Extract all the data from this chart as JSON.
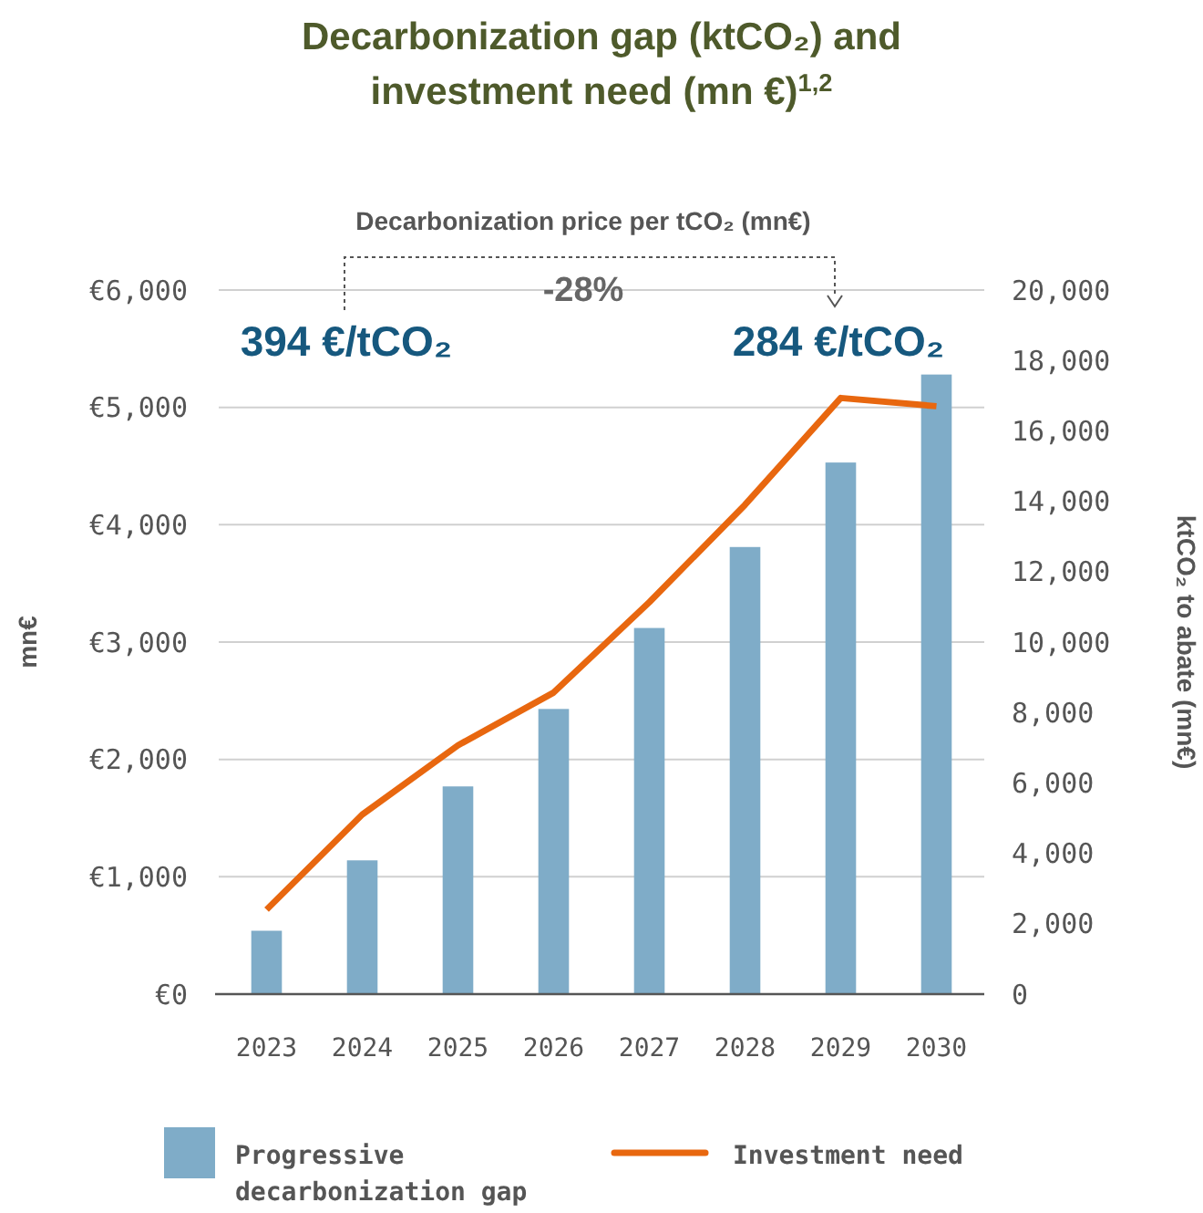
{
  "chart_data": {
    "type": "bar",
    "title": "Decarbonization gap (ktCO₂) and investment need (mn €)$^{1,2}$",
    "ylabel": "mn€",
    "y2label": "ktCO₂ to abate (mn€)",
    "categories": [
      "2023",
      "2024",
      "2025",
      "2026",
      "2027",
      "2028",
      "2029",
      "2030"
    ],
    "series": [
      {
        "name": "Progressive decarbonization gap",
        "axis": "y2",
        "color": "#7facc8",
        "values": [
          1800,
          3800,
          5900,
          8100,
          10400,
          12700,
          15100,
          17600
        ]
      },
      {
        "name": "Investment need",
        "type": "line",
        "axis": "y",
        "color": "#e8670f",
        "values": [
          720,
          1530,
          2120,
          2570,
          3340,
          4170,
          5080,
          5010
        ]
      }
    ],
    "ylim": [
      0,
      6000
    ],
    "yticks": [
      {
        "value": 0,
        "label": "€0"
      },
      {
        "value": 1000,
        "label": "€1,000"
      },
      {
        "value": 2000,
        "label": "€2,000"
      },
      {
        "value": 3000,
        "label": "€3,000"
      },
      {
        "value": 4000,
        "label": "€4,000"
      },
      {
        "value": 5000,
        "label": "€5,000"
      },
      {
        "value": 6000,
        "label": "€6,000"
      }
    ],
    "y2lim": [
      0,
      20000
    ],
    "y2ticks": [
      0,
      {
        "value": 2000,
        "label": "2,000"
      },
      {
        "value": 4000,
        "label": "4,000"
      },
      {
        "value": 6000,
        "label": "6,000"
      },
      {
        "value": 8000,
        "label": "8,000"
      },
      {
        "value": 10000,
        "label": "10,000"
      },
      {
        "value": 12000,
        "label": "12,000"
      },
      {
        "value": 14000,
        "label": "14,000"
      },
      {
        "value": 16000,
        "label": "16,000"
      },
      {
        "value": 18000,
        "label": "18,000"
      },
      {
        "value": 20000,
        "label": "20,000"
      }
    ],
    "annotations": [
      "Decarbonization price per tCO₂ (mn€)",
      "-28%",
      "394 €/tCO₂",
      "284 €/tCO₂"
    ],
    "grid": "y",
    "legend": "bottom",
    "marker": "none",
    "line_style": "solid"
  }
}
